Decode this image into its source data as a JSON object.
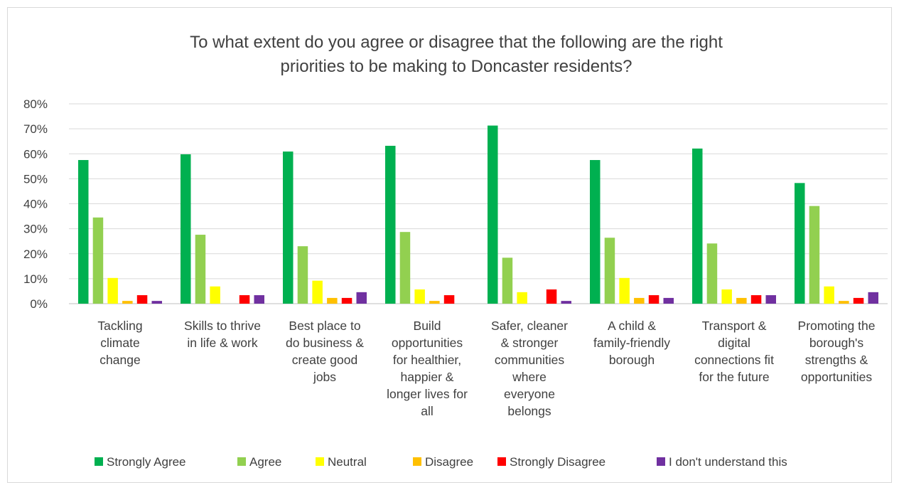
{
  "chart_data": {
    "type": "bar",
    "title": [
      "To what extent do you agree or disagree that the following are the right",
      "priorities to be making to Doncaster residents?"
    ],
    "categories": [
      [
        "Tackling",
        "climate",
        "change"
      ],
      [
        "Skills to thrive",
        "in life & work"
      ],
      [
        "Best place to",
        "do business &",
        "create good",
        "jobs"
      ],
      [
        "Build",
        "opportunities",
        "for healthier,",
        "happier &",
        "longer lives for",
        "all"
      ],
      [
        "Safer, cleaner",
        "& stronger",
        "communities",
        "where",
        "everyone",
        "belongs"
      ],
      [
        "A child &",
        "family-friendly",
        "borough"
      ],
      [
        "Transport &",
        "digital",
        "connections fit",
        "for the future"
      ],
      [
        "Promoting the",
        "borough's",
        "strengths &",
        "opportunities"
      ]
    ],
    "series": [
      {
        "name": "Strongly Agree",
        "color": "#00b050",
        "values": [
          57.5,
          59.8,
          60.9,
          63.2,
          71.3,
          57.5,
          62.1,
          48.3
        ]
      },
      {
        "name": "Agree",
        "color": "#92d050",
        "values": [
          34.5,
          27.6,
          23.0,
          28.7,
          18.4,
          26.4,
          24.1,
          39.1
        ]
      },
      {
        "name": "Neutral",
        "color": "#ffff00",
        "values": [
          10.3,
          6.9,
          9.2,
          5.7,
          4.6,
          10.3,
          5.7,
          6.9
        ]
      },
      {
        "name": "Disagree",
        "color": "#ffc000",
        "values": [
          1.1,
          0,
          2.3,
          1.1,
          0,
          2.3,
          2.3,
          1.1
        ]
      },
      {
        "name": "Strongly Disagree",
        "color": "#ff0000",
        "values": [
          3.4,
          3.4,
          2.3,
          3.4,
          5.7,
          3.4,
          3.4,
          2.3
        ]
      },
      {
        "name": "I don't understand this",
        "color": "#7030a0",
        "values": [
          1.1,
          3.4,
          4.6,
          0,
          1.1,
          2.3,
          3.4,
          4.6
        ]
      }
    ],
    "yticks": [
      "0%",
      "10%",
      "20%",
      "30%",
      "40%",
      "50%",
      "60%",
      "70%",
      "80%"
    ],
    "ylim": [
      0,
      80
    ],
    "grid": true,
    "legend": "bottom"
  }
}
